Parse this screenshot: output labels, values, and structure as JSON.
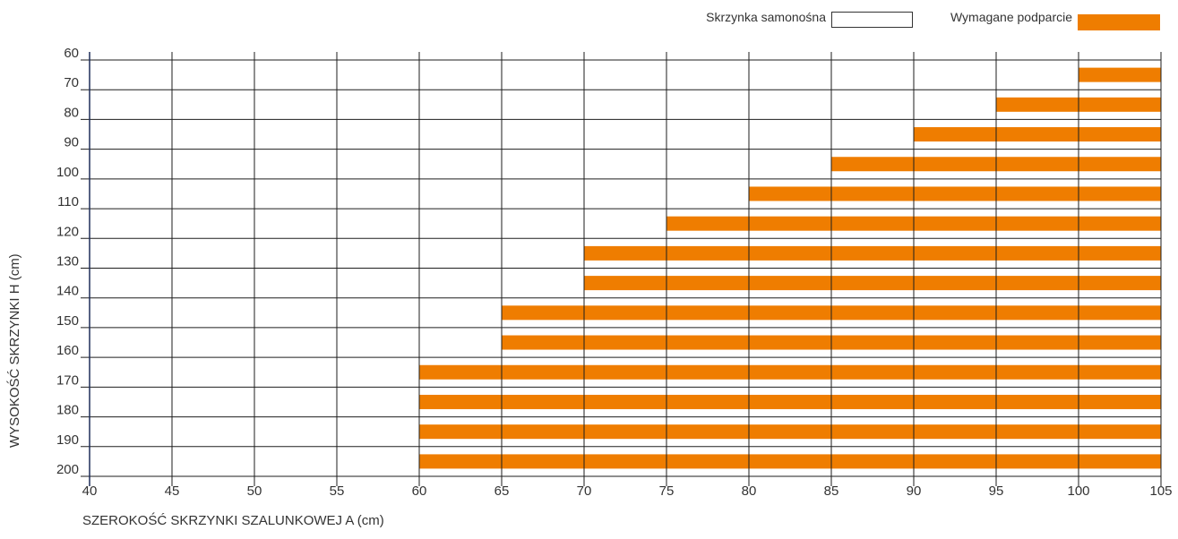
{
  "chart_data": {
    "type": "bar",
    "orientation": "horizontal",
    "xlabel": "SZEROKOŚĆ SKRZYNKI SZALUNKOWEJ A  (cm)",
    "ylabel": "WYSOKOŚĆ SKRZYNKI H  (cm)",
    "x_ticks": [
      40,
      45,
      50,
      55,
      60,
      65,
      70,
      75,
      80,
      85,
      90,
      95,
      100,
      105
    ],
    "y_ticks": [
      60,
      70,
      80,
      90,
      100,
      110,
      120,
      130,
      140,
      150,
      160,
      170,
      180,
      190,
      200
    ],
    "xlim": [
      40,
      105
    ],
    "ylim": [
      60,
      200
    ],
    "grid": true,
    "legend_position": "top-right",
    "series": [
      {
        "name": "Wymagane podparcie",
        "color": "#ef7d00",
        "bars": [
          {
            "h": 70,
            "a_from": 100,
            "a_to": 105
          },
          {
            "h": 80,
            "a_from": 95,
            "a_to": 105
          },
          {
            "h": 90,
            "a_from": 90,
            "a_to": 105
          },
          {
            "h": 100,
            "a_from": 85,
            "a_to": 105
          },
          {
            "h": 110,
            "a_from": 80,
            "a_to": 105
          },
          {
            "h": 120,
            "a_from": 75,
            "a_to": 105
          },
          {
            "h": 130,
            "a_from": 70,
            "a_to": 105
          },
          {
            "h": 140,
            "a_from": 70,
            "a_to": 105
          },
          {
            "h": 150,
            "a_from": 65,
            "a_to": 105
          },
          {
            "h": 160,
            "a_from": 65,
            "a_to": 105
          },
          {
            "h": 170,
            "a_from": 60,
            "a_to": 105
          },
          {
            "h": 180,
            "a_from": 60,
            "a_to": 105
          },
          {
            "h": 190,
            "a_from": 60,
            "a_to": 105
          },
          {
            "h": 200,
            "a_from": 60,
            "a_to": 105
          }
        ]
      }
    ],
    "legend": [
      {
        "label": "Skrzynka samonośna",
        "swatch": "outline",
        "color": "#333333"
      },
      {
        "label": "Wymagane podparcie",
        "swatch": "filled",
        "color": "#ef7d00"
      }
    ]
  }
}
